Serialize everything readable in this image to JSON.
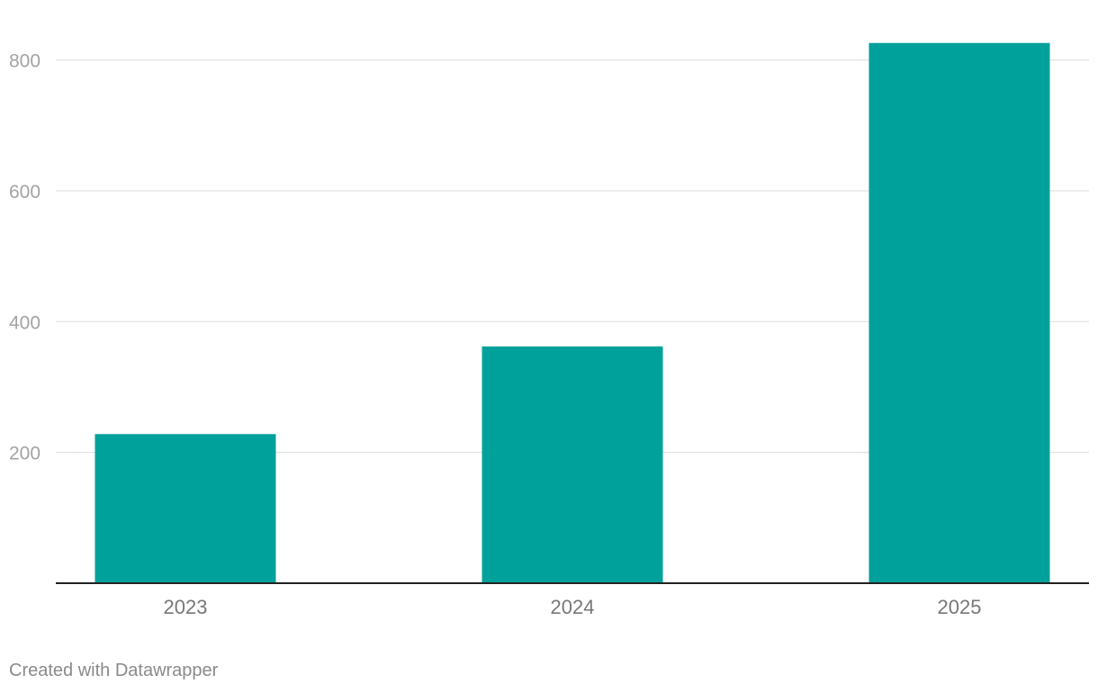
{
  "chart_data": {
    "type": "bar",
    "categories": [
      "2023",
      "2024",
      "2025"
    ],
    "values": [
      228,
      362,
      826
    ],
    "y_ticks": [
      200,
      400,
      600,
      800
    ],
    "ylim": [
      0,
      840
    ],
    "grid": true,
    "bar_color": "#00a19a",
    "title": "",
    "xlabel": "",
    "ylabel": ""
  },
  "footer": {
    "credit": "Created with Datawrapper"
  },
  "colors": {
    "gridline": "#e2e2e2",
    "tick_label": "#a3a3a3",
    "category_label": "#777777",
    "baseline": "#222222"
  }
}
